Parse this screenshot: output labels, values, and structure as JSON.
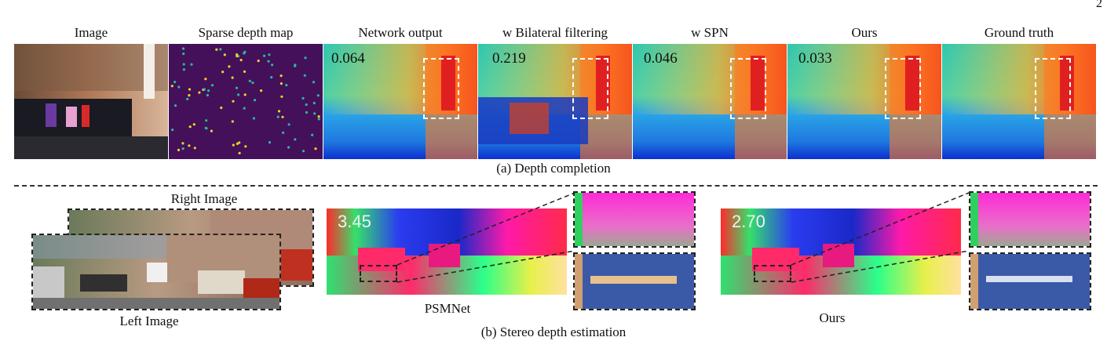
{
  "page_number": "2",
  "depth_completion": {
    "column_labels": [
      "Image",
      "Sparse depth map",
      "Network output",
      "w Bilateral filtering",
      "w SPN",
      "Ours",
      "Ground truth"
    ],
    "errors": [
      "0.064",
      "0.219",
      "0.046",
      "0.033"
    ],
    "caption": "(a) Depth completion"
  },
  "stereo": {
    "right_image_label": "Right Image",
    "left_image_label": "Left Image",
    "psmnet_label": "PSMNet",
    "ours_label": "Ours",
    "psmnet_error": "3.45",
    "ours_error": "2.70",
    "caption": "(b) Stereo depth estimation"
  }
}
